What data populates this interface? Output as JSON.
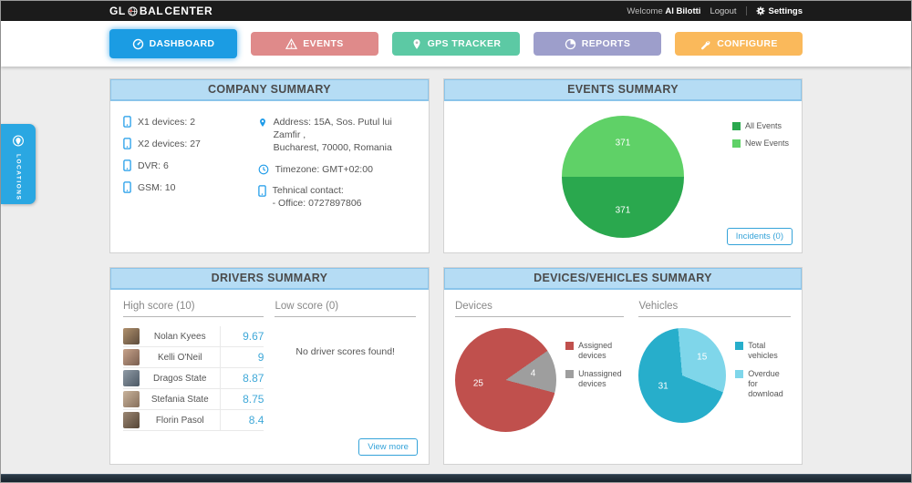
{
  "topbar": {
    "logo_prefix": "GL",
    "logo_mid": "BAL",
    "logo_suffix": "CENTER",
    "welcome": "Welcome",
    "username": "Al Bilotti",
    "logout": "Logout",
    "settings": "Settings"
  },
  "nav": {
    "tabs": [
      {
        "label": "DASHBOARD",
        "color": "#1b9ce3",
        "icon": "gauge-icon",
        "active": true
      },
      {
        "label": "EVENTS",
        "color": "#df8a8a",
        "icon": "warning-icon",
        "active": false
      },
      {
        "label": "GPS TRACKER",
        "color": "#5cc9a4",
        "icon": "pin-icon",
        "active": false
      },
      {
        "label": "REPORTS",
        "color": "#9d9ecb",
        "icon": "pie-icon",
        "active": false
      },
      {
        "label": "CONFIGURE",
        "color": "#fab95b",
        "icon": "wrench-icon",
        "active": false
      }
    ]
  },
  "side_tab": {
    "label": "LOCATIONS"
  },
  "panels": {
    "company": {
      "title": "COMPANY SUMMARY",
      "devices": [
        {
          "label": "X1 devices: 2"
        },
        {
          "label": "X2 devices: 27"
        },
        {
          "label": "DVR: 6"
        },
        {
          "label": "GSM: 10"
        }
      ],
      "address_line1": "Address: 15A, Sos. Putul lui Zamfir ,",
      "address_line2": "Bucharest, 70000, Romania",
      "timezone": "Timezone: GMT+02:00",
      "contact_label": "Tehnical contact:",
      "contact_value": "- Office: 0727897806"
    },
    "events": {
      "title": "EVENTS SUMMARY",
      "incidents_button": "Incidents (0)"
    },
    "drivers": {
      "title": "DRIVERS SUMMARY",
      "high_header": "High score (10)",
      "low_header": "Low score (0)",
      "high_scores": [
        {
          "name": "Nolan Kyees",
          "score": "9.67"
        },
        {
          "name": "Kelli O'Neil",
          "score": "9"
        },
        {
          "name": "Dragos State",
          "score": "8.87"
        },
        {
          "name": "Stefania State",
          "score": "8.75"
        },
        {
          "name": "Florin Pasol",
          "score": "8.4"
        }
      ],
      "low_empty": "No driver scores found!",
      "view_more": "View more"
    },
    "devices_vehicles": {
      "title": "DEVICES/VEHICLES SUMMARY",
      "devices_header": "Devices",
      "vehicles_header": "Vehicles"
    }
  },
  "chart_data": [
    {
      "id": "events_pie",
      "type": "pie",
      "title": "Events Summary",
      "start_angle": 270,
      "slices": [
        {
          "label": "New Events",
          "value": 371,
          "color": "#5fd167"
        },
        {
          "label": "All Events",
          "value": 371,
          "color": "#2aa84e"
        }
      ],
      "legend_position": "top-right",
      "legend": [
        {
          "label": "All Events",
          "color": "#2aa84e"
        },
        {
          "label": "New Events",
          "color": "#5fd167"
        }
      ]
    },
    {
      "id": "devices_pie",
      "type": "pie",
      "title": "Devices",
      "start_angle": 55,
      "slices": [
        {
          "label": "Unassigned devices",
          "value": 4,
          "color": "#9e9e9e"
        },
        {
          "label": "Assigned devices",
          "value": 25,
          "color": "#c0504d"
        }
      ],
      "legend_position": "right",
      "legend": [
        {
          "label": "Assigned devices",
          "color": "#c0504d"
        },
        {
          "label": "Unassigned devices",
          "color": "#9e9e9e"
        }
      ]
    },
    {
      "id": "vehicles_pie",
      "type": "pie",
      "title": "Vehicles",
      "start_angle": 355,
      "slices": [
        {
          "label": "Overdue for download",
          "value": 15,
          "color": "#7fd6ea"
        },
        {
          "label": "Total vehicles",
          "value": 31,
          "color": "#27aecb"
        }
      ],
      "legend_position": "right",
      "legend": [
        {
          "label": "Total vehicles",
          "color": "#27aecb"
        },
        {
          "label": "Overdue for download",
          "color": "#7fd6ea"
        }
      ]
    }
  ]
}
